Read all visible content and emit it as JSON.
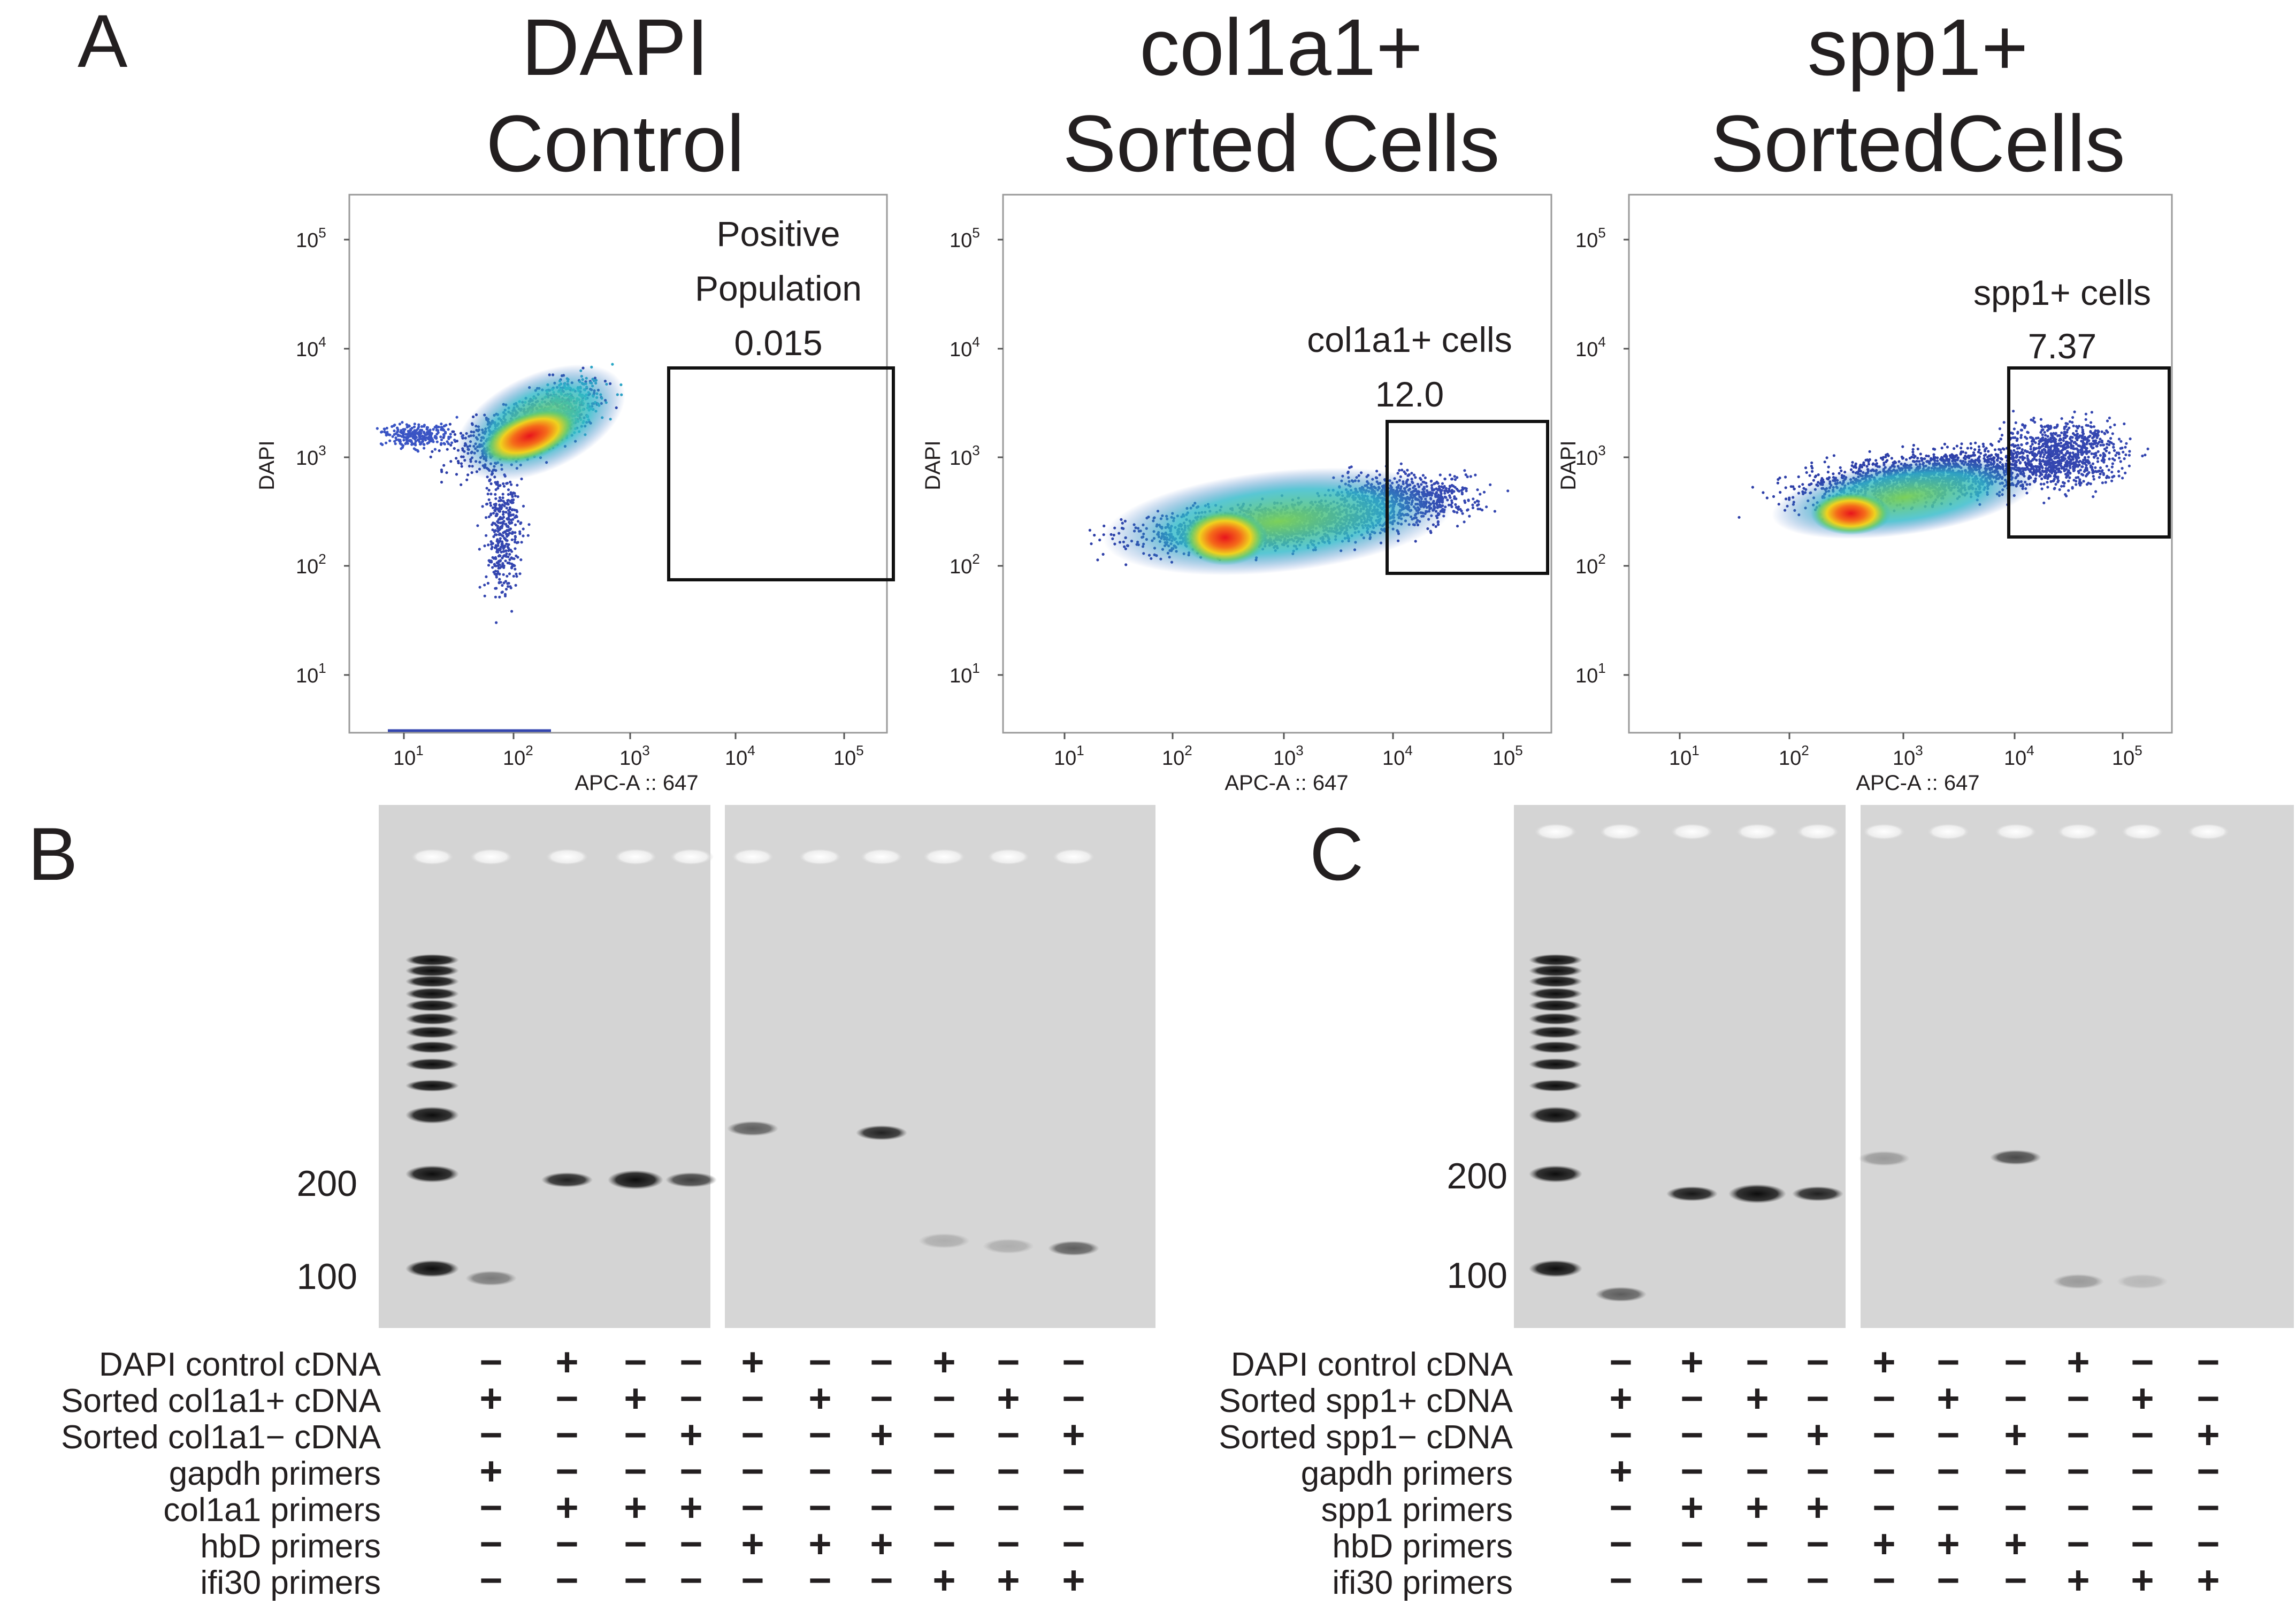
{
  "panels": {
    "A": {
      "letter": "A",
      "plots": [
        {
          "title_line1": "DAPI",
          "title_line2": "Control",
          "xlabel": "APC-A :: 647",
          "ylabel": "DAPI",
          "gate_label_lines": [
            "Positive",
            "Population",
            "0.015"
          ],
          "x_ticks": [
            "10",
            "10",
            "10",
            "10",
            "10"
          ],
          "x_tick_exps": [
            "1",
            "2",
            "3",
            "4",
            "5"
          ],
          "y_ticks": [
            "10",
            "10",
            "10",
            "10",
            "10"
          ],
          "y_tick_exps": [
            "1",
            "2",
            "3",
            "4",
            "5"
          ]
        },
        {
          "title_line1": "col1a1+",
          "title_line2": "Sorted Cells",
          "xlabel": "APC-A :: 647",
          "ylabel": "DAPI",
          "gate_label_lines": [
            "col1a1+ cells",
            "12.0"
          ],
          "x_ticks": [
            "10",
            "10",
            "10",
            "10",
            "10"
          ],
          "x_tick_exps": [
            "1",
            "2",
            "3",
            "4",
            "5"
          ],
          "y_ticks": [
            "10",
            "10",
            "10",
            "10",
            "10"
          ],
          "y_tick_exps": [
            "1",
            "2",
            "3",
            "4",
            "5"
          ]
        },
        {
          "title_line1": "spp1+",
          "title_line2": "SortedCells",
          "xlabel": "APC-A :: 647",
          "ylabel": "DAPI",
          "gate_label_lines": [
            "spp1+ cells",
            "7.37"
          ],
          "x_ticks": [
            "10",
            "10",
            "10",
            "10",
            "10"
          ],
          "x_tick_exps": [
            "1",
            "2",
            "3",
            "4",
            "5"
          ],
          "y_ticks": [
            "10",
            "10",
            "10",
            "10",
            "10"
          ],
          "y_tick_exps": [
            "1",
            "2",
            "3",
            "4",
            "5"
          ]
        }
      ]
    },
    "B": {
      "letter": "B",
      "markers": [
        "200",
        "100"
      ],
      "rows": [
        {
          "label": "DAPI control cDNA",
          "signs": [
            "−",
            "+",
            "−",
            "−",
            "+",
            "−",
            "−",
            "+",
            "−",
            "−"
          ]
        },
        {
          "label": "Sorted col1a1+ cDNA",
          "signs": [
            "+",
            "−",
            "+",
            "−",
            "−",
            "+",
            "−",
            "−",
            "+",
            "−"
          ]
        },
        {
          "label": "Sorted col1a1− cDNA",
          "signs": [
            "−",
            "−",
            "−",
            "+",
            "−",
            "−",
            "+",
            "−",
            "−",
            "+"
          ]
        },
        {
          "label": "gapdh primers",
          "signs": [
            "+",
            "−",
            "−",
            "−",
            "−",
            "−",
            "−",
            "−",
            "−",
            "−"
          ]
        },
        {
          "label": "col1a1 primers",
          "signs": [
            "−",
            "+",
            "+",
            "+",
            "−",
            "−",
            "−",
            "−",
            "−",
            "−"
          ]
        },
        {
          "label": "hbD primers",
          "signs": [
            "−",
            "−",
            "−",
            "−",
            "+",
            "+",
            "+",
            "−",
            "−",
            "−"
          ]
        },
        {
          "label": "ifi30 primers",
          "signs": [
            "−",
            "−",
            "−",
            "−",
            "−",
            "−",
            "−",
            "+",
            "+",
            "+"
          ]
        }
      ]
    },
    "C": {
      "letter": "C",
      "markers": [
        "200",
        "100"
      ],
      "rows": [
        {
          "label": "DAPI control cDNA",
          "signs": [
            "−",
            "+",
            "−",
            "−",
            "+",
            "−",
            "−",
            "+",
            "−",
            "−"
          ]
        },
        {
          "label": "Sorted spp1+ cDNA",
          "signs": [
            "+",
            "−",
            "+",
            "−",
            "−",
            "+",
            "−",
            "−",
            "+",
            "−"
          ]
        },
        {
          "label": "Sorted spp1− cDNA",
          "signs": [
            "−",
            "−",
            "−",
            "+",
            "−",
            "−",
            "+",
            "−",
            "−",
            "+"
          ]
        },
        {
          "label": "gapdh primers",
          "signs": [
            "+",
            "−",
            "−",
            "−",
            "−",
            "−",
            "−",
            "−",
            "−",
            "−"
          ]
        },
        {
          "label": "spp1 primers",
          "signs": [
            "−",
            "+",
            "+",
            "+",
            "−",
            "−",
            "−",
            "−",
            "−",
            "−"
          ]
        },
        {
          "label": "hbD primers",
          "signs": [
            "−",
            "−",
            "−",
            "−",
            "+",
            "+",
            "+",
            "−",
            "−",
            "−"
          ]
        },
        {
          "label": "ifi30 primers",
          "signs": [
            "−",
            "−",
            "−",
            "−",
            "−",
            "−",
            "−",
            "+",
            "+",
            "+"
          ]
        }
      ]
    }
  }
}
